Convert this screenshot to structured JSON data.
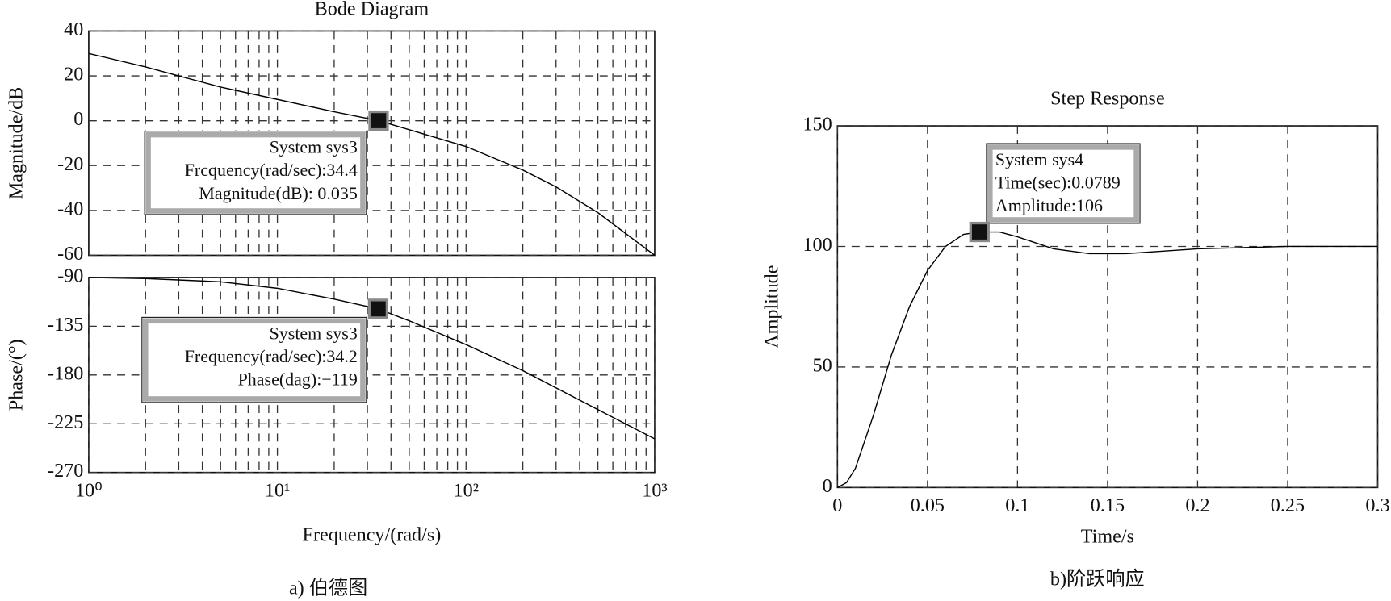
{
  "chart_data": [
    {
      "type": "line",
      "title": "Bode Diagram",
      "ylabel": "Magnitude/dB",
      "caption": "a) 伯德图",
      "xscale": "log",
      "xlim": [
        1,
        1000
      ],
      "ylim": [
        -60,
        40
      ],
      "yticks": [
        -60,
        -40,
        -20,
        0,
        20,
        40
      ],
      "grid": true,
      "minor_grid": true,
      "color": "#000000",
      "x": [
        1,
        2,
        3,
        5,
        10,
        20,
        34.4,
        50,
        100,
        200,
        300,
        500,
        1000
      ],
      "values": [
        30,
        24,
        20,
        15,
        9.5,
        4,
        0.035,
        -4,
        -11.5,
        -22,
        -29.5,
        -41,
        -60
      ],
      "datatip": {
        "x": 34.4,
        "y": 0.035,
        "lines": [
          "System sys3",
          "Frcquency(rad/sec):34.4",
          "Magnitude(dB): 0.035"
        ]
      }
    },
    {
      "type": "line",
      "ylabel": "Phase/(°)",
      "xlabel": "Frequency/(rad/s)",
      "xscale": "log",
      "xlim": [
        1,
        1000
      ],
      "xticks": [
        {
          "value": 1,
          "label": "10⁰"
        },
        {
          "value": 10,
          "label": "10¹"
        },
        {
          "value": 100,
          "label": "10²"
        },
        {
          "value": 1000,
          "label": "10³"
        }
      ],
      "ylim": [
        -270,
        -90
      ],
      "yticks": [
        -270,
        -225,
        -180,
        -135,
        -90
      ],
      "grid": true,
      "minor_grid": true,
      "color": "#000000",
      "x": [
        1,
        2,
        5,
        10,
        20,
        34.2,
        50,
        100,
        200,
        500,
        1000
      ],
      "values": [
        -90,
        -91,
        -94,
        -100,
        -110,
        -119,
        -130,
        -152,
        -176,
        -212,
        -239
      ],
      "datatip": {
        "x": 34.2,
        "y": -119,
        "lines": [
          "System sys3",
          "Frequency(rad/sec):34.2",
          "Phase(dag):−119"
        ]
      }
    },
    {
      "type": "line",
      "title": "Step Response",
      "xlabel": "Time/s",
      "ylabel": "Amplitude",
      "caption": "b)阶跃响应",
      "xlim": [
        0,
        0.3
      ],
      "xticks": [
        0,
        0.05,
        0.1,
        0.15,
        0.2,
        0.25,
        0.3
      ],
      "ylim": [
        0,
        150
      ],
      "yticks": [
        0,
        50,
        100,
        150
      ],
      "grid": true,
      "color": "#000000",
      "x": [
        0,
        0.005,
        0.01,
        0.02,
        0.03,
        0.04,
        0.05,
        0.06,
        0.07,
        0.0789,
        0.09,
        0.1,
        0.12,
        0.14,
        0.16,
        0.18,
        0.2,
        0.25,
        0.3
      ],
      "values": [
        0,
        2,
        8,
        30,
        55,
        75,
        90,
        100,
        105,
        106,
        106,
        104,
        99,
        97,
        97,
        98,
        99,
        100,
        100
      ],
      "datatip": {
        "x": 0.0789,
        "y": 106,
        "lines": [
          "System sys4",
          "Time(sec):0.0789",
          "Amplitude:106"
        ]
      }
    }
  ]
}
